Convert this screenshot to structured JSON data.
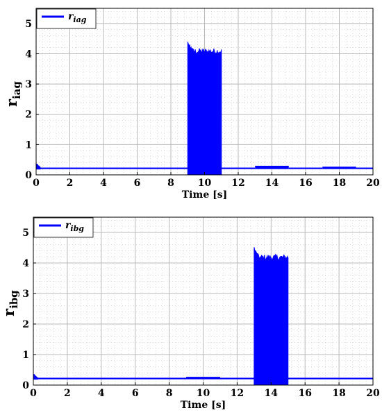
{
  "colors": {
    "series": "#0000ff",
    "grid_major": "#b8b8b8",
    "grid_minor": "#c8c8c8",
    "axis": "#000000"
  },
  "chart_data": [
    {
      "type": "line",
      "ylabel_main": "r",
      "ylabel_sub": "iag",
      "xlabel": "Time [s]",
      "legend": {
        "main": "r",
        "sub": "iag",
        "placement": "top-left"
      },
      "xlim": [
        0,
        20
      ],
      "ylim": [
        0,
        5.5
      ],
      "xticks": [
        "0",
        "2",
        "4",
        "6",
        "8",
        "10",
        "12",
        "14",
        "16",
        "18",
        "20"
      ],
      "yticks": [
        "0",
        "1",
        "2",
        "3",
        "4",
        "5"
      ],
      "grid": "on",
      "series": [
        {
          "name": "r_iag",
          "segments": [
            {
              "t": [
                0,
                9
              ],
              "low": 0.19,
              "high": 0.24,
              "start_peak": 0.37
            },
            {
              "t": [
                9,
                11
              ],
              "low": 0.0,
              "high": 4.1,
              "peak": 4.35
            },
            {
              "t": [
                11,
                13
              ],
              "low": 0.19,
              "high": 0.24
            },
            {
              "t": [
                13,
                15
              ],
              "low": 0.19,
              "high": 0.3
            },
            {
              "t": [
                15,
                17
              ],
              "low": 0.19,
              "high": 0.24
            },
            {
              "t": [
                17,
                19
              ],
              "low": 0.19,
              "high": 0.27
            },
            {
              "t": [
                19,
                20
              ],
              "low": 0.19,
              "high": 0.24
            }
          ]
        }
      ]
    },
    {
      "type": "line",
      "ylabel_main": "r",
      "ylabel_sub": "ibg",
      "xlabel": "Time [s]",
      "legend": {
        "main": "r",
        "sub": "ibg",
        "placement": "top-left"
      },
      "xlim": [
        0,
        20
      ],
      "ylim": [
        0,
        5.5
      ],
      "xticks": [
        "0",
        "2",
        "4",
        "6",
        "8",
        "10",
        "12",
        "14",
        "16",
        "18",
        "20"
      ],
      "yticks": [
        "0",
        "1",
        "2",
        "3",
        "4",
        "5"
      ],
      "grid": "on",
      "series": [
        {
          "name": "r_ibg",
          "segments": [
            {
              "t": [
                0,
                9
              ],
              "low": 0.19,
              "high": 0.24,
              "start_peak": 0.36
            },
            {
              "t": [
                9,
                11
              ],
              "low": 0.19,
              "high": 0.27
            },
            {
              "t": [
                11,
                13
              ],
              "low": 0.19,
              "high": 0.24
            },
            {
              "t": [
                13,
                15
              ],
              "low": 0.0,
              "high": 4.2,
              "peak": 4.45
            },
            {
              "t": [
                15,
                20
              ],
              "low": 0.19,
              "high": 0.24
            }
          ]
        }
      ]
    }
  ]
}
